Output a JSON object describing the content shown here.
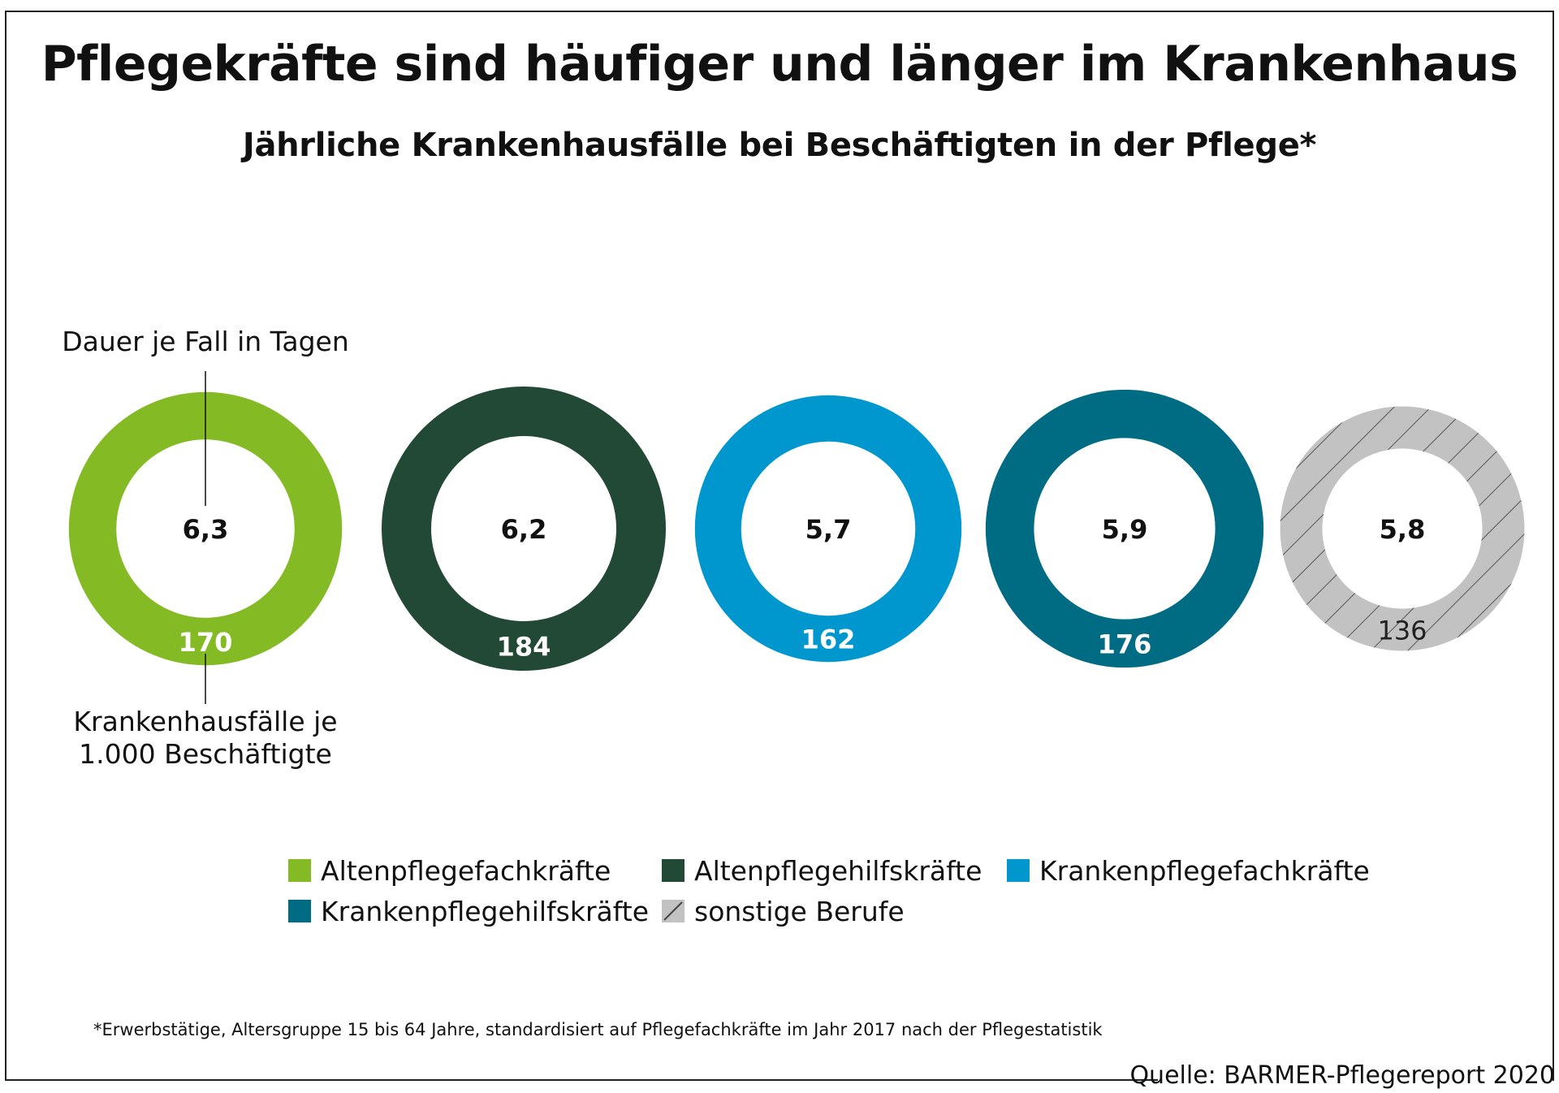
{
  "chart_data": {
    "type": "donut-series",
    "title": "Pflegekräfte sind häufiger und länger im Krankenhaus",
    "subtitle": "Jährliche Krankenhausfälle bei Beschäftigten in der Pflege*",
    "label_inner": "Dauer je Fall in Tagen",
    "label_outer": "Krankenhausfälle je 1.000 Beschäftigte",
    "label_outer_lines": [
      "Krankenhausfälle je",
      "1.000 Beschäftigte"
    ],
    "series": [
      {
        "name": "Altenpflegefachkräfte",
        "dauer": 6.3,
        "dauer_label": "6,3",
        "faelle": 170,
        "color": "#84bb25",
        "pattern": "solid"
      },
      {
        "name": "Altenpflegehilfskräfte",
        "dauer": 6.2,
        "dauer_label": "6,2",
        "faelle": 184,
        "color": "#214935",
        "pattern": "solid"
      },
      {
        "name": "Krankenpflegefachkräfte",
        "dauer": 5.7,
        "dauer_label": "5,7",
        "faelle": 162,
        "color": "#0097ce",
        "pattern": "solid"
      },
      {
        "name": "Krankenpflegehilfskräfte",
        "dauer": 5.9,
        "dauer_label": "5,9",
        "faelle": 176,
        "color": "#006c84",
        "pattern": "solid"
      },
      {
        "name": "sonstige Berufe",
        "dauer": 5.8,
        "dauer_label": "5,8",
        "faelle": 136,
        "color": "#c0c0c0",
        "pattern": "hatched"
      }
    ]
  },
  "legend": {
    "rows": [
      [
        "Altenpflegefachkräfte",
        "Altenpflegehilfskräfte",
        "Krankenpflegefachkräfte"
      ],
      [
        "Krankenpflegehilfskräfte",
        "sonstige Berufe"
      ]
    ]
  },
  "footnote": "*Erwerbstätige, Altersgruppe 15 bis 64 Jahre, standardisiert auf Pflegefachkräfte im Jahr 2017 nach der Pflegestatistik",
  "source": "Quelle: BARMER-Pflegereport 2020"
}
